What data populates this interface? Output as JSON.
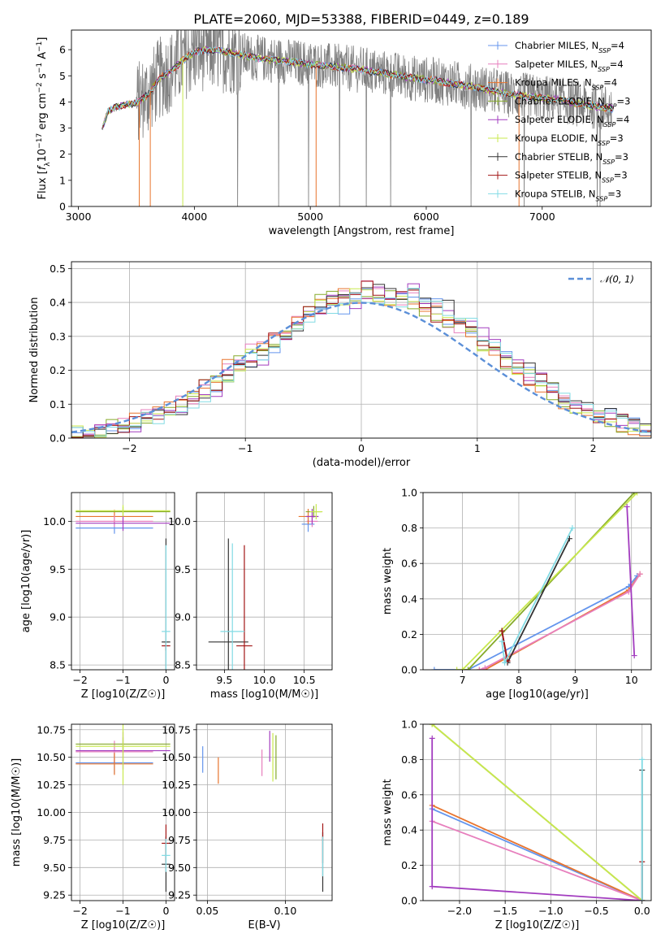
{
  "figure_title": "PLATE=2060, MJD=53388, FIBERID=0449, z=0.189",
  "colors": {
    "Chabrier MILES": "#6495ed",
    "Salpeter MILES": "#e77fbd",
    "Kroupa MILES": "#e8742d",
    "Chabrier ELODIE": "#86aa2a",
    "Salpeter ELODIE": "#a23cbf",
    "Kroupa ELODIE": "#c8e84e",
    "Chabrier STELIB": "#333333",
    "Salpeter STELIB": "#a21515",
    "Kroupa STELIB": "#82dbe4",
    "data": "#808080",
    "gaussian": "#5b8fd8"
  },
  "chart_data": [
    {
      "panel": "spectrum",
      "type": "line",
      "title": "PLATE=2060, MJD=53388, FIBERID=0449, z=0.189",
      "xlabel": "wavelength [Angstrom, rest frame]",
      "ylabel": "Flux [f_λ 10^-17 erg cm^-2 s^-1 A^-1]",
      "xlim": [
        2940,
        7940
      ],
      "ylim": [
        0,
        6.75
      ],
      "xticks": [
        "3000",
        "4000",
        "5000",
        "6000",
        "7000"
      ],
      "yticks": [
        "0",
        "1",
        "2",
        "3",
        "4",
        "5",
        "6"
      ],
      "legend_position": "top-right",
      "legend": [
        {
          "label": "Chabrier MILES, N",
          "sub": "SSP",
          "eq": "=4"
        },
        {
          "label": "Salpeter MILES, N",
          "sub": "SSP",
          "eq": "=4"
        },
        {
          "label": "Kroupa MILES, N",
          "sub": "SSP",
          "eq": "=4"
        },
        {
          "label": "Chabrier ELODIE, N",
          "sub": "SSP",
          "eq": "=3"
        },
        {
          "label": "Salpeter ELODIE, N",
          "sub": "SSP",
          "eq": "=4"
        },
        {
          "label": "Kroupa ELODIE, N",
          "sub": "SSP",
          "eq": "=3"
        },
        {
          "label": "Chabrier STELIB, N",
          "sub": "SSP",
          "eq": "=3"
        },
        {
          "label": "Salpeter STELIB, N",
          "sub": "SSP",
          "eq": "=3"
        },
        {
          "label": "Kroupa STELIB, N",
          "sub": "SSP",
          "eq": "=3"
        }
      ],
      "continuum": {
        "x": [
          3200,
          3250,
          3300,
          3400,
          3500,
          3600,
          3700,
          3800,
          3900,
          4000,
          4100,
          4200,
          4300,
          4400,
          4500,
          4700,
          4900,
          5100,
          5300,
          5500,
          5700,
          5900,
          6100,
          6300,
          6500,
          6700,
          6900,
          7100,
          7300,
          7500,
          7600
        ],
        "y": [
          2.9,
          3.6,
          3.75,
          3.9,
          3.95,
          4.3,
          4.9,
          5.2,
          5.6,
          5.9,
          6.0,
          5.95,
          5.9,
          5.8,
          5.7,
          5.6,
          5.5,
          5.4,
          5.3,
          5.2,
          5.05,
          4.9,
          4.8,
          4.65,
          4.5,
          4.3,
          4.2,
          4.1,
          3.95,
          3.8,
          3.75
        ]
      }
    },
    {
      "panel": "residual_histogram",
      "type": "line",
      "xlabel": "(data-model)/error",
      "ylabel": "Normed distribution",
      "xlim": [
        -2.5,
        2.5
      ],
      "ylim": [
        0,
        0.52
      ],
      "xticks": [
        "−2",
        "−1",
        "0",
        "1",
        "2"
      ],
      "yticks": [
        "0.0",
        "0.1",
        "0.2",
        "0.3",
        "0.4",
        "0.5"
      ],
      "legend_position": "top-right",
      "legend_label": "N(0,1)"
    },
    {
      "panel": "age_vs_Z",
      "type": "scatter",
      "xlabel": "Z [log10(Z/Z☉)]",
      "ylabel": "age [log10(age/yr)]",
      "xlim": [
        -2.2,
        0.2
      ],
      "ylim": [
        8.45,
        10.3
      ],
      "xticks": [
        "−2",
        "−1",
        "0"
      ],
      "yticks": [
        "8.5",
        "9.0",
        "9.5",
        "10.0"
      ],
      "points": [
        {
          "model": "Chabrier MILES",
          "x": -1.2,
          "xerr": 0.9,
          "y": 9.93,
          "yerr": 0.06
        },
        {
          "model": "Kroupa MILES",
          "x": -1.2,
          "xerr": 0.9,
          "y": 10.05,
          "yerr": 0.07
        },
        {
          "model": "Salpeter MILES",
          "x": -1.2,
          "xerr": 0.9,
          "y": 10.0,
          "yerr": 0.06
        },
        {
          "model": "Chabrier ELODIE",
          "x": -1.0,
          "xerr": 1.1,
          "y": 10.1,
          "yerr": 0.05
        },
        {
          "model": "Salpeter ELODIE",
          "x": -1.0,
          "xerr": 1.1,
          "y": 9.98,
          "yerr": 0.08
        },
        {
          "model": "Kroupa ELODIE",
          "x": -1.0,
          "xerr": 1.1,
          "y": 10.11,
          "yerr": 0.06
        },
        {
          "model": "Chabrier STELIB",
          "x": 0.0,
          "xerr": 0.1,
          "y": 8.74,
          "yerr": 1.08
        },
        {
          "model": "Salpeter STELIB",
          "x": 0.0,
          "xerr": 0.1,
          "y": 8.7,
          "yerr": 0.05
        },
        {
          "model": "Kroupa STELIB",
          "x": 0.0,
          "xerr": 0.1,
          "y": 8.85,
          "yerr": 0.9
        }
      ]
    },
    {
      "panel": "age_vs_mass",
      "type": "scatter",
      "xlabel": "mass [log10(M/M☉)]",
      "xlim": [
        9.15,
        10.85
      ],
      "ylim": [
        8.45,
        10.3
      ],
      "xticks": [
        "9.5",
        "10.0",
        "10.5"
      ],
      "yticks": [
        "8.5",
        "9.0",
        "9.5",
        "10.0"
      ],
      "points": [
        {
          "model": "Chabrier MILES",
          "x": 10.55,
          "xerr": 0.08,
          "y": 9.97,
          "yerr": 0.08
        },
        {
          "model": "Salpeter MILES",
          "x": 10.6,
          "xerr": 0.07,
          "y": 10.0,
          "yerr": 0.06
        },
        {
          "model": "Kroupa MILES",
          "x": 10.55,
          "xerr": 0.12,
          "y": 10.05,
          "yerr": 0.08
        },
        {
          "model": "Chabrier ELODIE",
          "x": 10.62,
          "xerr": 0.1,
          "y": 10.1,
          "yerr": 0.06
        },
        {
          "model": "Salpeter ELODIE",
          "x": 10.6,
          "xerr": 0.08,
          "y": 10.05,
          "yerr": 0.08
        },
        {
          "model": "Kroupa ELODIE",
          "x": 10.65,
          "xerr": 0.08,
          "y": 10.1,
          "yerr": 0.08
        },
        {
          "model": "Chabrier STELIB",
          "x": 9.55,
          "xerr": 0.25,
          "y": 8.74,
          "yerr": 1.08
        },
        {
          "model": "Salpeter STELIB",
          "x": 9.75,
          "xerr": 0.1,
          "y": 8.7,
          "yerr": 1.05
        },
        {
          "model": "Kroupa STELIB",
          "x": 9.6,
          "xerr": 0.15,
          "y": 8.85,
          "yerr": 0.92
        }
      ]
    },
    {
      "panel": "weight_vs_age",
      "type": "line",
      "xlabel": "age [log10(age/yr)]",
      "ylabel": "mass weight",
      "xlim": [
        6.3,
        10.35
      ],
      "ylim": [
        0,
        1.0
      ],
      "xticks": [
        "7",
        "8",
        "9",
        "10"
      ],
      "yticks": [
        "0.0",
        "0.2",
        "0.4",
        "0.6",
        "0.8",
        "1.0"
      ],
      "series": [
        {
          "model": "Chabrier MILES",
          "x": [
            6.5,
            7.1,
            9.95,
            10.1
          ],
          "y": [
            0.0,
            0.0,
            0.47,
            0.53
          ]
        },
        {
          "model": "Kroupa MILES",
          "x": [
            7.3,
            7.4,
            9.95,
            10.15
          ],
          "y": [
            0.0,
            0.0,
            0.45,
            0.54
          ]
        },
        {
          "model": "Salpeter MILES",
          "x": [
            7.3,
            7.4,
            9.95,
            10.15
          ],
          "y": [
            0.0,
            0.01,
            0.44,
            0.54
          ]
        },
        {
          "model": "Chabrier ELODIE",
          "x": [
            7.0,
            7.1,
            10.05
          ],
          "y": [
            0.0,
            0.0,
            1.0
          ]
        },
        {
          "model": "Kroupa ELODIE",
          "x": [
            6.9,
            7.0,
            10.1
          ],
          "y": [
            0.0,
            0.0,
            1.0
          ]
        },
        {
          "model": "Salpeter ELODIE",
          "x": [
            9.92,
            10.05
          ],
          "y": [
            0.92,
            0.08
          ]
        },
        {
          "model": "Chabrier STELIB",
          "x": [
            7.7,
            7.8,
            8.9
          ],
          "y": [
            0.22,
            0.04,
            0.74
          ]
        },
        {
          "model": "Salpeter STELIB",
          "x": [
            7.7,
            7.8
          ],
          "y": [
            0.22,
            0.05
          ]
        },
        {
          "model": "Kroupa STELIB",
          "x": [
            7.7,
            7.75,
            8.95
          ],
          "y": [
            0.16,
            0.04,
            0.8
          ]
        }
      ]
    },
    {
      "panel": "mass_vs_Z",
      "type": "scatter",
      "xlabel": "Z [log10(Z/Z☉)]",
      "ylabel": "mass [log10(M/M☉)]",
      "xlim": [
        -2.2,
        0.2
      ],
      "ylim": [
        9.2,
        10.8
      ],
      "xticks": [
        "−2",
        "−1",
        "0"
      ],
      "yticks": [
        "9.25",
        "9.50",
        "9.75",
        "10.00",
        "10.25",
        "10.50",
        "10.75"
      ],
      "points": [
        {
          "model": "Chabrier MILES",
          "x": -1.2,
          "xerr": 0.9,
          "y": 10.45,
          "yerr": 0.1
        },
        {
          "model": "Salpeter MILES",
          "x": -1.2,
          "xerr": 0.9,
          "y": 10.55,
          "yerr": 0.1
        },
        {
          "model": "Kroupa MILES",
          "x": -1.2,
          "xerr": 0.9,
          "y": 10.44,
          "yerr": 0.1
        },
        {
          "model": "Chabrier ELODIE",
          "x": -1.0,
          "xerr": 1.1,
          "y": 10.62,
          "yerr": 0.06
        },
        {
          "model": "Salpeter ELODIE",
          "x": -1.0,
          "xerr": 1.1,
          "y": 10.56,
          "yerr": 0.17
        },
        {
          "model": "Kroupa ELODIE",
          "x": -1.0,
          "xerr": 1.1,
          "y": 10.6,
          "yerr": 0.35
        },
        {
          "model": "Chabrier STELIB",
          "x": 0.0,
          "xerr": 0.1,
          "y": 9.53,
          "yerr": 0.25
        },
        {
          "model": "Salpeter STELIB",
          "x": 0.0,
          "xerr": 0.1,
          "y": 9.72,
          "yerr": 0.17
        },
        {
          "model": "Kroupa STELIB",
          "x": 0.0,
          "xerr": 0.1,
          "y": 9.61,
          "yerr": 0.15
        }
      ]
    },
    {
      "panel": "mass_vs_EBV",
      "type": "scatter",
      "xlabel": "E(B-V)",
      "xlim": [
        0.043,
        0.13
      ],
      "ylim": [
        9.2,
        10.8
      ],
      "xticks": [
        "0.05",
        "0.10"
      ],
      "yticks": [
        "9.25",
        "9.50",
        "9.75",
        "10.00",
        "10.25",
        "10.50",
        "10.75"
      ],
      "points": [
        {
          "model": "Chabrier MILES",
          "x": 0.047,
          "y": 10.48,
          "yerr": 0.12
        },
        {
          "model": "Kroupa MILES",
          "x": 0.057,
          "y": 10.38,
          "yerr": 0.12
        },
        {
          "model": "Salpeter MILES",
          "x": 0.085,
          "y": 10.45,
          "yerr": 0.12
        },
        {
          "model": "Kroupa ELODIE",
          "x": 0.092,
          "y": 10.5,
          "yerr": 0.22
        },
        {
          "model": "Salpeter ELODIE",
          "x": 0.09,
          "y": 10.6,
          "yerr": 0.14
        },
        {
          "model": "Chabrier ELODIE",
          "x": 0.094,
          "y": 10.5,
          "yerr": 0.2
        },
        {
          "model": "Chabrier STELIB",
          "x": 0.124,
          "y": 9.55,
          "yerr": 0.27
        },
        {
          "model": "Salpeter STELIB",
          "x": 0.124,
          "y": 9.72,
          "yerr": 0.18
        },
        {
          "model": "Kroupa STELIB",
          "x": 0.124,
          "y": 9.6,
          "yerr": 0.18
        }
      ]
    },
    {
      "panel": "weight_vs_Z",
      "type": "line",
      "xlabel": "Z [log10(Z/Z☉)]",
      "ylabel": "mass weight",
      "xlim": [
        -2.4,
        0.1
      ],
      "ylim": [
        0,
        1.0
      ],
      "xticks": [
        "−2.0",
        "−1.5",
        "−1.0",
        "−0.5",
        "0.0"
      ],
      "yticks": [
        "0.0",
        "0.2",
        "0.4",
        "0.6",
        "0.8",
        "1.0"
      ],
      "series": [
        {
          "model": "Chabrier MILES",
          "x": [
            -2.3,
            0.0
          ],
          "y": [
            0.52,
            0.0
          ]
        },
        {
          "model": "Kroupa MILES",
          "x": [
            -2.3,
            0.0
          ],
          "y": [
            0.54,
            0.0
          ]
        },
        {
          "model": "Salpeter MILES",
          "x": [
            -2.3,
            0.0
          ],
          "y": [
            0.45,
            0.0
          ]
        },
        {
          "model": "Chabrier ELODIE",
          "x": [
            -2.3,
            0.0
          ],
          "y": [
            1.0,
            0.0
          ]
        },
        {
          "model": "Kroupa ELODIE",
          "x": [
            -2.3,
            0.0
          ],
          "y": [
            1.0,
            0.0
          ]
        },
        {
          "model": "Salpeter ELODIE",
          "x": [
            -2.3,
            -2.3,
            0.0
          ],
          "y": [
            0.92,
            0.08,
            0.0
          ]
        },
        {
          "model": "Chabrier STELIB",
          "x": [
            0.0,
            0.0
          ],
          "y": [
            0.0,
            0.74
          ]
        },
        {
          "model": "Salpeter STELIB",
          "x": [
            0.0,
            0.0
          ],
          "y": [
            0.0,
            0.22
          ]
        },
        {
          "model": "Kroupa STELIB",
          "x": [
            0.0,
            0.0
          ],
          "y": [
            0.0,
            0.8
          ]
        }
      ]
    }
  ]
}
